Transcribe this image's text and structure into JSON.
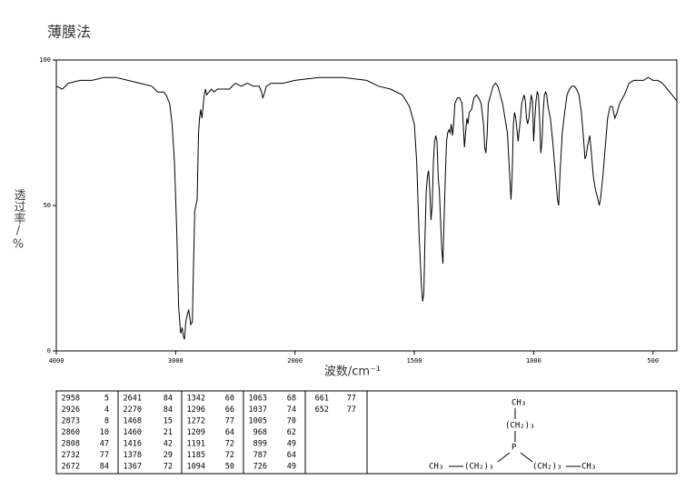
{
  "chart_data": {
    "type": "line",
    "title": "薄膜法",
    "xlabel": "波数/cm⁻¹",
    "ylabel": "透过率/%",
    "xlim": [
      4000,
      400
    ],
    "xticks": [
      4000,
      3000,
      2000,
      1500,
      1000,
      500
    ],
    "x_scale_change": {
      "at": 2000,
      "factor": 2
    },
    "ylim": [
      0,
      100
    ],
    "yticks": [
      0,
      50,
      100
    ],
    "color": "#000000",
    "x": [
      4000,
      3950,
      3900,
      3800,
      3700,
      3600,
      3500,
      3400,
      3300,
      3200,
      3150,
      3100,
      3080,
      3050,
      3030,
      3010,
      2990,
      2975,
      2958,
      2945,
      2935,
      2926,
      2915,
      2900,
      2890,
      2880,
      2873,
      2860,
      2850,
      2840,
      2830,
      2820,
      2808,
      2800,
      2790,
      2780,
      2770,
      2760,
      2750,
      2740,
      2720,
      2700,
      2680,
      2650,
      2600,
      2550,
      2500,
      2450,
      2400,
      2350,
      2300,
      2280,
      2270,
      2260,
      2240,
      2200,
      2100,
      2000,
      1900,
      1800,
      1700,
      1650,
      1600,
      1550,
      1520,
      1500,
      1490,
      1480,
      1470,
      1465,
      1460,
      1455,
      1450,
      1445,
      1440,
      1435,
      1430,
      1425,
      1420,
      1415,
      1410,
      1405,
      1400,
      1395,
      1390,
      1385,
      1380,
      1377,
      1370,
      1365,
      1360,
      1355,
      1350,
      1345,
      1340,
      1335,
      1330,
      1320,
      1310,
      1300,
      1295,
      1290,
      1285,
      1280,
      1275,
      1270,
      1260,
      1250,
      1240,
      1230,
      1220,
      1210,
      1205,
      1200,
      1195,
      1190,
      1180,
      1170,
      1160,
      1150,
      1140,
      1130,
      1120,
      1110,
      1100,
      1095,
      1090,
      1085,
      1080,
      1075,
      1070,
      1065,
      1060,
      1055,
      1050,
      1040,
      1035,
      1030,
      1025,
      1020,
      1015,
      1010,
      1005,
      1000,
      995,
      990,
      985,
      980,
      975,
      970,
      965,
      960,
      955,
      950,
      945,
      940,
      930,
      920,
      910,
      900,
      895,
      890,
      880,
      870,
      860,
      850,
      840,
      830,
      820,
      810,
      800,
      790,
      785,
      780,
      775,
      770,
      765,
      760,
      750,
      740,
      730,
      725,
      720,
      710,
      700,
      690,
      680,
      670,
      660,
      650,
      640,
      620,
      600,
      580,
      560,
      540,
      520,
      500,
      480,
      460,
      440,
      420,
      400
    ],
    "values": [
      91,
      90,
      92,
      93,
      93,
      94,
      94,
      93,
      92,
      91,
      89,
      89,
      88,
      85,
      78,
      65,
      40,
      15,
      6,
      8,
      5,
      4,
      10,
      13,
      14,
      11,
      9,
      10,
      30,
      48,
      50,
      52,
      75,
      80,
      83,
      80,
      84,
      88,
      90,
      88,
      89,
      90,
      89,
      90,
      90,
      90,
      92,
      91,
      92,
      91,
      91,
      89,
      87,
      88,
      91,
      92,
      92,
      93,
      94,
      94,
      93,
      91,
      90,
      88,
      84,
      78,
      65,
      40,
      22,
      17,
      20,
      40,
      55,
      60,
      62,
      55,
      45,
      50,
      65,
      72,
      74,
      72,
      60,
      55,
      45,
      35,
      30,
      40,
      60,
      72,
      75,
      76,
      75,
      78,
      74,
      78,
      85,
      87,
      87,
      85,
      78,
      70,
      75,
      80,
      78,
      82,
      83,
      87,
      88,
      87,
      85,
      78,
      70,
      68,
      74,
      85,
      88,
      91,
      92,
      91,
      88,
      85,
      80,
      75,
      60,
      52,
      60,
      78,
      82,
      80,
      76,
      72,
      76,
      80,
      85,
      88,
      86,
      80,
      78,
      80,
      84,
      88,
      86,
      72,
      80,
      86,
      89,
      88,
      80,
      68,
      72,
      82,
      88,
      89,
      88,
      84,
      80,
      72,
      62,
      52,
      50,
      60,
      75,
      82,
      88,
      90,
      91,
      91,
      90,
      88,
      82,
      72,
      66,
      67,
      70,
      72,
      74,
      70,
      60,
      55,
      52,
      50,
      52,
      60,
      70,
      80,
      84,
      84,
      80,
      82,
      85,
      88,
      92,
      93,
      93,
      93,
      94,
      93,
      93,
      92,
      90,
      88,
      86
    ]
  },
  "peak_table": {
    "columns": [
      [
        [
          2958,
          5
        ],
        [
          2926,
          4
        ],
        [
          2873,
          8
        ],
        [
          2860,
          10
        ],
        [
          2808,
          47
        ],
        [
          2732,
          77
        ],
        [
          2672,
          84
        ]
      ],
      [
        [
          2641,
          84
        ],
        [
          2270,
          84
        ],
        [
          1468,
          15
        ],
        [
          1460,
          21
        ],
        [
          1416,
          42
        ],
        [
          1378,
          29
        ],
        [
          1367,
          72
        ]
      ],
      [
        [
          1342,
          60
        ],
        [
          1296,
          66
        ],
        [
          1272,
          77
        ],
        [
          1209,
          64
        ],
        [
          1191,
          72
        ],
        [
          1185,
          72
        ],
        [
          1094,
          50
        ]
      ],
      [
        [
          1063,
          68
        ],
        [
          1037,
          74
        ],
        [
          1005,
          70
        ],
        [
          968,
          62
        ],
        [
          899,
          49
        ],
        [
          787,
          64
        ],
        [
          726,
          49
        ]
      ],
      [
        [
          661,
          77
        ],
        [
          652,
          77
        ]
      ]
    ]
  },
  "structure": {
    "labels": [
      "CH₃",
      "(CH₂)₃",
      "P",
      "CH₃",
      "(CH₂)₃",
      "(CH₂)₃",
      "CH₃"
    ]
  }
}
